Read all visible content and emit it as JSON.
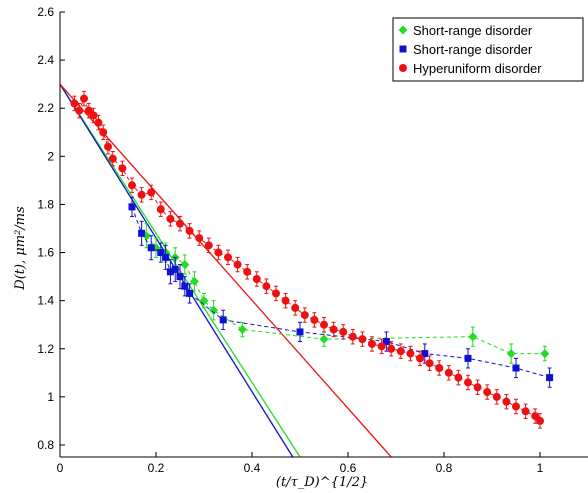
{
  "chart_data": {
    "type": "scatter",
    "xlabel": "(t/τ_D)^{1/2}",
    "ylabel": "D(t), μm²/ms",
    "xlim": [
      0,
      1.1
    ],
    "ylim": [
      0.75,
      2.6
    ],
    "x_ticks": [
      0,
      0.2,
      0.4,
      0.6,
      0.8,
      1
    ],
    "x_tick_labels": [
      "0",
      "0.2",
      "0.4",
      "0.6",
      "0.8",
      "1"
    ],
    "y_ticks": [
      0.8,
      1,
      1.2,
      1.4,
      1.6,
      1.8,
      2,
      2.2,
      2.4,
      2.6
    ],
    "y_tick_labels": [
      "0.8",
      "1",
      "1.2",
      "1.4",
      "1.6",
      "1.8",
      "2",
      "2.2",
      "2.4",
      "2.6"
    ],
    "grid": false,
    "legend_position": "top-right",
    "series": [
      {
        "name": "Short-range disorder",
        "color": "#22dd22",
        "marker": "diamond",
        "line": "dashed",
        "x": [
          0.18,
          0.2,
          0.22,
          0.24,
          0.26,
          0.28,
          0.3,
          0.32,
          0.38,
          0.55,
          0.86,
          0.94,
          1.01
        ],
        "y": [
          1.67,
          1.62,
          1.6,
          1.58,
          1.55,
          1.48,
          1.4,
          1.36,
          1.28,
          1.24,
          1.25,
          1.18,
          1.18
        ],
        "err": [
          0.05,
          0.04,
          0.04,
          0.04,
          0.04,
          0.04,
          0.03,
          0.04,
          0.03,
          0.03,
          0.04,
          0.04,
          0.03
        ]
      },
      {
        "name": "Short-range disorder",
        "color": "#1010d0",
        "marker": "square",
        "line": "dashed",
        "x": [
          0.15,
          0.17,
          0.19,
          0.21,
          0.22,
          0.23,
          0.24,
          0.25,
          0.26,
          0.27,
          0.34,
          0.5,
          0.68,
          0.76,
          0.85,
          0.95,
          1.02
        ],
        "y": [
          1.79,
          1.68,
          1.62,
          1.6,
          1.58,
          1.52,
          1.53,
          1.5,
          1.46,
          1.43,
          1.32,
          1.27,
          1.23,
          1.18,
          1.16,
          1.12,
          1.08
        ],
        "err": [
          0.04,
          0.05,
          0.05,
          0.04,
          0.05,
          0.05,
          0.05,
          0.05,
          0.04,
          0.04,
          0.04,
          0.04,
          0.04,
          0.04,
          0.04,
          0.04,
          0.04
        ]
      },
      {
        "name": "Hyperuniform disorder",
        "color": "#ee1111",
        "marker": "circle",
        "line": "dashed",
        "x": [
          0.03,
          0.04,
          0.05,
          0.06,
          0.07,
          0.08,
          0.09,
          0.1,
          0.11,
          0.13,
          0.15,
          0.17,
          0.19,
          0.21,
          0.23,
          0.25,
          0.27,
          0.29,
          0.31,
          0.33,
          0.35,
          0.37,
          0.39,
          0.41,
          0.43,
          0.45,
          0.47,
          0.49,
          0.51,
          0.53,
          0.55,
          0.57,
          0.59,
          0.61,
          0.63,
          0.65,
          0.67,
          0.69,
          0.71,
          0.73,
          0.75,
          0.77,
          0.79,
          0.81,
          0.83,
          0.85,
          0.87,
          0.89,
          0.91,
          0.93,
          0.95,
          0.97,
          0.99,
          1.0
        ],
        "y": [
          2.22,
          2.19,
          2.24,
          2.19,
          2.17,
          2.14,
          2.1,
          2.04,
          1.99,
          1.95,
          1.88,
          1.84,
          1.85,
          1.78,
          1.74,
          1.72,
          1.69,
          1.66,
          1.63,
          1.6,
          1.58,
          1.55,
          1.52,
          1.49,
          1.46,
          1.43,
          1.4,
          1.37,
          1.34,
          1.32,
          1.3,
          1.28,
          1.27,
          1.25,
          1.24,
          1.22,
          1.21,
          1.2,
          1.19,
          1.18,
          1.16,
          1.14,
          1.12,
          1.1,
          1.08,
          1.06,
          1.04,
          1.02,
          1.0,
          0.98,
          0.96,
          0.94,
          0.92,
          0.9
        ],
        "err": [
          0.03,
          0.03,
          0.03,
          0.03,
          0.03,
          0.03,
          0.03,
          0.03,
          0.03,
          0.03,
          0.03,
          0.03,
          0.03,
          0.03,
          0.03,
          0.03,
          0.03,
          0.03,
          0.03,
          0.03,
          0.03,
          0.03,
          0.03,
          0.03,
          0.03,
          0.03,
          0.03,
          0.03,
          0.03,
          0.03,
          0.03,
          0.03,
          0.03,
          0.03,
          0.03,
          0.03,
          0.03,
          0.03,
          0.03,
          0.03,
          0.03,
          0.03,
          0.03,
          0.03,
          0.03,
          0.03,
          0.03,
          0.03,
          0.03,
          0.03,
          0.03,
          0.03,
          0.03,
          0.03
        ]
      }
    ],
    "fit_lines": [
      {
        "color": "#22dd22",
        "points": [
          [
            0,
            2.3
          ],
          [
            0.5,
            0.75
          ]
        ]
      },
      {
        "color": "#1010d0",
        "points": [
          [
            0,
            2.3
          ],
          [
            0.485,
            0.75
          ]
        ]
      },
      {
        "color": "#ee1111",
        "points": [
          [
            0,
            2.3
          ],
          [
            0.69,
            0.75
          ]
        ]
      }
    ]
  }
}
